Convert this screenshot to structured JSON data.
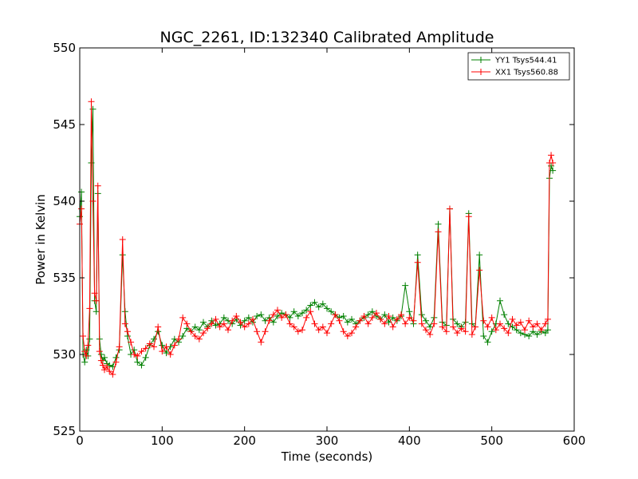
{
  "chart_data": {
    "type": "line",
    "title": "NGC_2261, ID:132340 Calibrated Amplitude",
    "xlabel": "Time (seconds)",
    "ylabel": "Power in Kelvin",
    "xlim": [
      0,
      600
    ],
    "ylim": [
      525,
      550
    ],
    "xticks": [
      0,
      100,
      200,
      300,
      400,
      500,
      600
    ],
    "yticks": [
      525,
      530,
      535,
      540,
      545,
      550
    ],
    "grid": false,
    "legend_position": "top-right",
    "marker": "+",
    "series": [
      {
        "name": "YY1 Tsys544.41",
        "color": "#008000",
        "points": [
          [
            0,
            539.0
          ],
          [
            2,
            540.6
          ],
          [
            4,
            530.0
          ],
          [
            6,
            529.5
          ],
          [
            8,
            530.3
          ],
          [
            10,
            529.9
          ],
          [
            12,
            531.0
          ],
          [
            14,
            542.5
          ],
          [
            16,
            546.0
          ],
          [
            18,
            533.5
          ],
          [
            20,
            532.8
          ],
          [
            22,
            540.5
          ],
          [
            24,
            531.0
          ],
          [
            26,
            530.0
          ],
          [
            28,
            529.6
          ],
          [
            30,
            529.8
          ],
          [
            33,
            529.4
          ],
          [
            36,
            529.3
          ],
          [
            40,
            529.2
          ],
          [
            44,
            529.8
          ],
          [
            48,
            530.3
          ],
          [
            52,
            536.5
          ],
          [
            55,
            532.8
          ],
          [
            58,
            531.2
          ],
          [
            62,
            530.0
          ],
          [
            66,
            530.3
          ],
          [
            70,
            529.5
          ],
          [
            75,
            529.3
          ],
          [
            80,
            529.8
          ],
          [
            85,
            530.6
          ],
          [
            90,
            531.0
          ],
          [
            95,
            531.5
          ],
          [
            100,
            530.6
          ],
          [
            105,
            530.1
          ],
          [
            110,
            530.5
          ],
          [
            115,
            531.0
          ],
          [
            120,
            530.8
          ],
          [
            125,
            531.2
          ],
          [
            130,
            531.7
          ],
          [
            135,
            531.5
          ],
          [
            140,
            531.8
          ],
          [
            145,
            531.6
          ],
          [
            150,
            532.1
          ],
          [
            155,
            531.8
          ],
          [
            160,
            532.2
          ],
          [
            165,
            531.9
          ],
          [
            170,
            532.0
          ],
          [
            175,
            532.4
          ],
          [
            180,
            532.2
          ],
          [
            185,
            532.0
          ],
          [
            190,
            532.3
          ],
          [
            195,
            531.9
          ],
          [
            200,
            532.2
          ],
          [
            205,
            532.4
          ],
          [
            210,
            532.1
          ],
          [
            215,
            532.5
          ],
          [
            220,
            532.6
          ],
          [
            225,
            532.2
          ],
          [
            230,
            532.4
          ],
          [
            235,
            532.1
          ],
          [
            240,
            532.5
          ],
          [
            245,
            532.7
          ],
          [
            250,
            532.6
          ],
          [
            255,
            532.4
          ],
          [
            260,
            532.8
          ],
          [
            265,
            532.5
          ],
          [
            270,
            532.7
          ],
          [
            275,
            532.9
          ],
          [
            280,
            533.2
          ],
          [
            285,
            533.4
          ],
          [
            290,
            533.1
          ],
          [
            295,
            533.3
          ],
          [
            300,
            533.0
          ],
          [
            305,
            532.8
          ],
          [
            310,
            532.6
          ],
          [
            315,
            532.4
          ],
          [
            320,
            532.5
          ],
          [
            325,
            532.1
          ],
          [
            330,
            532.3
          ],
          [
            335,
            532.0
          ],
          [
            340,
            532.2
          ],
          [
            345,
            532.4
          ],
          [
            350,
            532.6
          ],
          [
            355,
            532.8
          ],
          [
            360,
            532.5
          ],
          [
            365,
            532.3
          ],
          [
            370,
            532.6
          ],
          [
            375,
            532.1
          ],
          [
            380,
            532.4
          ],
          [
            385,
            532.2
          ],
          [
            390,
            532.5
          ],
          [
            395,
            534.5
          ],
          [
            400,
            532.8
          ],
          [
            405,
            532.0
          ],
          [
            410,
            536.5
          ],
          [
            415,
            532.6
          ],
          [
            420,
            532.2
          ],
          [
            425,
            531.8
          ],
          [
            430,
            532.4
          ],
          [
            435,
            538.5
          ],
          [
            440,
            532.1
          ],
          [
            445,
            531.9
          ],
          [
            449,
            539.5
          ],
          [
            453,
            532.3
          ],
          [
            458,
            532.0
          ],
          [
            463,
            531.8
          ],
          [
            468,
            532.1
          ],
          [
            472,
            539.2
          ],
          [
            476,
            532.0
          ],
          [
            480,
            531.8
          ],
          [
            485,
            536.5
          ],
          [
            490,
            531.2
          ],
          [
            495,
            530.8
          ],
          [
            500,
            531.5
          ],
          [
            505,
            532.0
          ],
          [
            510,
            533.5
          ],
          [
            515,
            532.6
          ],
          [
            520,
            532.0
          ],
          [
            525,
            531.8
          ],
          [
            530,
            531.6
          ],
          [
            535,
            531.4
          ],
          [
            540,
            531.3
          ],
          [
            545,
            531.2
          ],
          [
            550,
            531.5
          ],
          [
            555,
            531.3
          ],
          [
            560,
            531.5
          ],
          [
            565,
            531.4
          ],
          [
            568,
            531.6
          ],
          [
            570,
            541.5
          ],
          [
            572,
            542.3
          ],
          [
            574,
            542.0
          ]
        ]
      },
      {
        "name": "XX1 Tsys560.88",
        "color": "#ff0000",
        "points": [
          [
            0,
            538.5
          ],
          [
            2,
            539.5
          ],
          [
            4,
            531.2
          ],
          [
            6,
            530.2
          ],
          [
            8,
            529.9
          ],
          [
            10,
            530.6
          ],
          [
            12,
            533.0
          ],
          [
            14,
            546.5
          ],
          [
            16,
            540.0
          ],
          [
            18,
            534.0
          ],
          [
            20,
            533.5
          ],
          [
            22,
            541.0
          ],
          [
            24,
            530.2
          ],
          [
            26,
            529.6
          ],
          [
            28,
            529.3
          ],
          [
            30,
            529.0
          ],
          [
            33,
            529.2
          ],
          [
            36,
            528.9
          ],
          [
            40,
            528.7
          ],
          [
            44,
            529.5
          ],
          [
            48,
            530.5
          ],
          [
            52,
            537.5
          ],
          [
            55,
            532.0
          ],
          [
            58,
            531.5
          ],
          [
            62,
            530.8
          ],
          [
            66,
            530.0
          ],
          [
            70,
            529.9
          ],
          [
            75,
            530.2
          ],
          [
            80,
            530.4
          ],
          [
            85,
            530.7
          ],
          [
            90,
            530.5
          ],
          [
            95,
            531.8
          ],
          [
            100,
            530.2
          ],
          [
            105,
            530.5
          ],
          [
            110,
            530.0
          ],
          [
            115,
            530.6
          ],
          [
            120,
            531.0
          ],
          [
            125,
            532.4
          ],
          [
            130,
            532.0
          ],
          [
            135,
            531.5
          ],
          [
            140,
            531.2
          ],
          [
            145,
            531.0
          ],
          [
            150,
            531.4
          ],
          [
            155,
            531.7
          ],
          [
            160,
            532.0
          ],
          [
            165,
            532.3
          ],
          [
            170,
            531.8
          ],
          [
            175,
            532.0
          ],
          [
            180,
            531.6
          ],
          [
            185,
            532.2
          ],
          [
            190,
            532.5
          ],
          [
            195,
            532.1
          ],
          [
            200,
            531.8
          ],
          [
            205,
            532.0
          ],
          [
            210,
            532.3
          ],
          [
            215,
            531.5
          ],
          [
            220,
            530.8
          ],
          [
            225,
            531.5
          ],
          [
            230,
            532.2
          ],
          [
            235,
            532.6
          ],
          [
            240,
            532.9
          ],
          [
            245,
            532.4
          ],
          [
            250,
            532.6
          ],
          [
            255,
            532.0
          ],
          [
            260,
            531.8
          ],
          [
            265,
            531.5
          ],
          [
            270,
            531.6
          ],
          [
            275,
            532.4
          ],
          [
            280,
            532.8
          ],
          [
            285,
            532.0
          ],
          [
            290,
            531.6
          ],
          [
            295,
            531.8
          ],
          [
            300,
            531.4
          ],
          [
            305,
            532.0
          ],
          [
            310,
            532.6
          ],
          [
            315,
            532.2
          ],
          [
            320,
            531.5
          ],
          [
            325,
            531.2
          ],
          [
            330,
            531.4
          ],
          [
            335,
            531.8
          ],
          [
            340,
            532.2
          ],
          [
            345,
            532.5
          ],
          [
            350,
            532.0
          ],
          [
            355,
            532.4
          ],
          [
            360,
            532.7
          ],
          [
            365,
            532.3
          ],
          [
            370,
            532.0
          ],
          [
            375,
            532.5
          ],
          [
            380,
            531.8
          ],
          [
            385,
            532.3
          ],
          [
            390,
            532.6
          ],
          [
            395,
            532.0
          ],
          [
            400,
            532.4
          ],
          [
            405,
            532.2
          ],
          [
            410,
            536.0
          ],
          [
            415,
            532.0
          ],
          [
            420,
            531.6
          ],
          [
            425,
            531.3
          ],
          [
            430,
            532.0
          ],
          [
            435,
            538.0
          ],
          [
            440,
            531.8
          ],
          [
            445,
            531.5
          ],
          [
            449,
            539.5
          ],
          [
            453,
            531.8
          ],
          [
            458,
            531.4
          ],
          [
            463,
            531.7
          ],
          [
            468,
            531.5
          ],
          [
            472,
            539.0
          ],
          [
            476,
            531.3
          ],
          [
            480,
            531.8
          ],
          [
            485,
            535.5
          ],
          [
            490,
            532.2
          ],
          [
            495,
            531.8
          ],
          [
            500,
            532.4
          ],
          [
            505,
            531.6
          ],
          [
            510,
            532.0
          ],
          [
            515,
            531.7
          ],
          [
            520,
            531.4
          ],
          [
            525,
            532.3
          ],
          [
            530,
            531.9
          ],
          [
            535,
            532.1
          ],
          [
            540,
            531.6
          ],
          [
            545,
            532.2
          ],
          [
            550,
            531.8
          ],
          [
            555,
            532.0
          ],
          [
            560,
            531.6
          ],
          [
            565,
            532.0
          ],
          [
            568,
            532.3
          ],
          [
            570,
            542.5
          ],
          [
            572,
            543.0
          ],
          [
            574,
            542.5
          ]
        ]
      }
    ]
  }
}
